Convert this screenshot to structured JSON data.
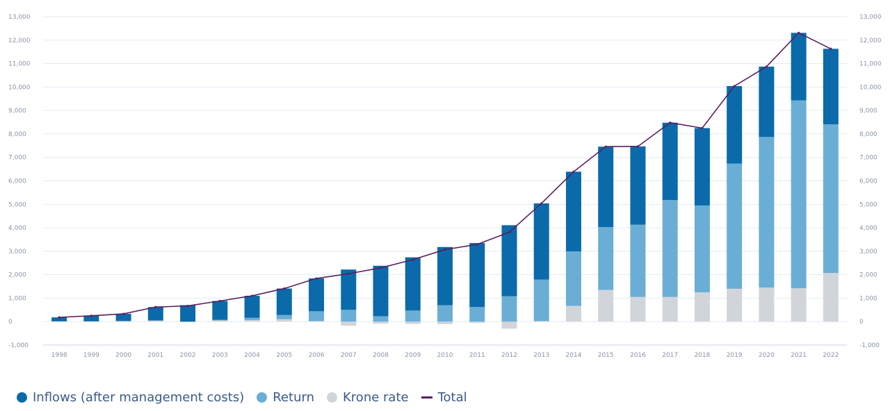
{
  "chart_data": {
    "type": "bar",
    "stacked": true,
    "categories": [
      "1998",
      "1999",
      "2000",
      "2001",
      "2002",
      "2003",
      "2004",
      "2005",
      "2006",
      "2007",
      "2008",
      "2009",
      "2010",
      "2011",
      "2012",
      "2013",
      "2014",
      "2015",
      "2016",
      "2017",
      "2018",
      "2019",
      "2020",
      "2021",
      "2022"
    ],
    "series": [
      {
        "name": "Krone rate",
        "color": "#d1d5da",
        "values": [
          10,
          10,
          10,
          40,
          -30,
          50,
          60,
          100,
          20,
          -180,
          -90,
          -100,
          -110,
          -60,
          -300,
          20,
          670,
          1350,
          1050,
          1050,
          1250,
          1400,
          1450,
          1420,
          2070
        ]
      },
      {
        "name": "Return",
        "color": "#6aaed6",
        "values": [
          0,
          0,
          20,
          10,
          0,
          30,
          100,
          180,
          420,
          500,
          230,
          470,
          700,
          620,
          1080,
          1770,
          2320,
          2680,
          3080,
          4130,
          3700,
          5340,
          6420,
          8010,
          6340
        ]
      },
      {
        "name": "Inflows (after management costs)",
        "color": "#0b6aa9",
        "values": [
          170,
          240,
          300,
          570,
          700,
          800,
          940,
          1130,
          1400,
          1720,
          2150,
          2270,
          2480,
          2730,
          3030,
          3250,
          3400,
          3430,
          3340,
          3300,
          3300,
          3300,
          3000,
          2880,
          3220
        ]
      }
    ],
    "total": {
      "name": "Total",
      "color": "#5a1f5e",
      "values": [
        180,
        250,
        330,
        620,
        670,
        880,
        1100,
        1410,
        1840,
        2040,
        2290,
        2640,
        3070,
        3290,
        3810,
        5040,
        6390,
        7460,
        7470,
        8480,
        8250,
        10040,
        10870,
        12310,
        11630
      ]
    },
    "ylim": [
      -1000,
      13000
    ],
    "yticks": [
      "-1,000",
      "0",
      "1,000",
      "2,000",
      "3,000",
      "4,000",
      "5,000",
      "6,000",
      "7,000",
      "8,000",
      "9,000",
      "10,000",
      "11,000",
      "12,000",
      "13,000"
    ],
    "ytick_values": [
      -1000,
      0,
      1000,
      2000,
      3000,
      4000,
      5000,
      6000,
      7000,
      8000,
      9000,
      10000,
      11000,
      12000,
      13000
    ],
    "legend": [
      {
        "label": "Inflows (after management costs)",
        "color": "#0b6aa9",
        "shape": "dot"
      },
      {
        "label": "Return",
        "color": "#6aaed6",
        "shape": "dot"
      },
      {
        "label": "Krone rate",
        "color": "#d1d5da",
        "shape": "dot"
      },
      {
        "label": "Total",
        "color": "#5a1f5e",
        "shape": "line"
      }
    ],
    "grid": true,
    "legend_position": "bottom-left"
  }
}
